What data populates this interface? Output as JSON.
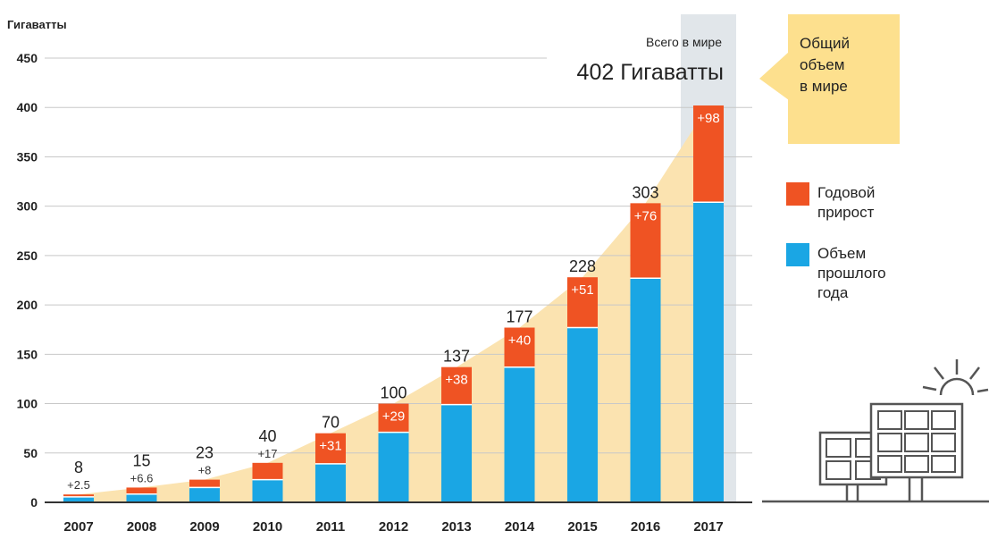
{
  "chart_data": {
    "type": "bar",
    "stacked": true,
    "ylabel": "Гигаватты",
    "ylim": [
      0,
      450
    ],
    "yticks": [
      0,
      50,
      100,
      150,
      200,
      250,
      300,
      350,
      400,
      450
    ],
    "categories": [
      "2007",
      "2008",
      "2009",
      "2010",
      "2011",
      "2012",
      "2013",
      "2014",
      "2015",
      "2016",
      "2017"
    ],
    "totals": [
      8,
      15,
      23,
      40,
      70,
      100,
      137,
      177,
      228,
      303,
      402
    ],
    "series": [
      {
        "name": "Объем прошлого года",
        "color": "#1aa6e4",
        "values": [
          5.5,
          8.4,
          15,
          23,
          39,
          71,
          99,
          137,
          177,
          227,
          304
        ]
      },
      {
        "name": "Годовой прирост",
        "color": "#ef5323",
        "values": [
          2.5,
          6.6,
          8,
          17,
          31,
          29,
          38,
          40,
          51,
          76,
          98
        ]
      }
    ],
    "increment_labels": [
      "+2.5",
      "+6.6",
      "+8",
      "+17",
      "+31",
      "+29",
      "+38",
      "+40",
      "+51",
      "+76",
      "+98"
    ],
    "total_labels": [
      "8",
      "15",
      "23",
      "40",
      "70",
      "100",
      "137",
      "177",
      "228",
      "303",
      ""
    ],
    "highlight_category": "2017",
    "grid": true,
    "legend": [
      {
        "label_lines": [
          "Годовой",
          "прирост"
        ],
        "color": "#ef5323"
      },
      {
        "label_lines": [
          "Объем",
          "прошлого",
          "года"
        ],
        "color": "#1aa6e4"
      }
    ],
    "legend_position": "right",
    "callout": {
      "small": "Всего в мире",
      "big": "402 Гигаватты"
    },
    "box_label_lines": [
      "Общий",
      "объем",
      "в мире"
    ],
    "colors": {
      "area": "#fbe3b0",
      "box": "#fde08e",
      "highlight": "#e1e6ea"
    },
    "illustration": "solar-panels-sun-icon"
  }
}
